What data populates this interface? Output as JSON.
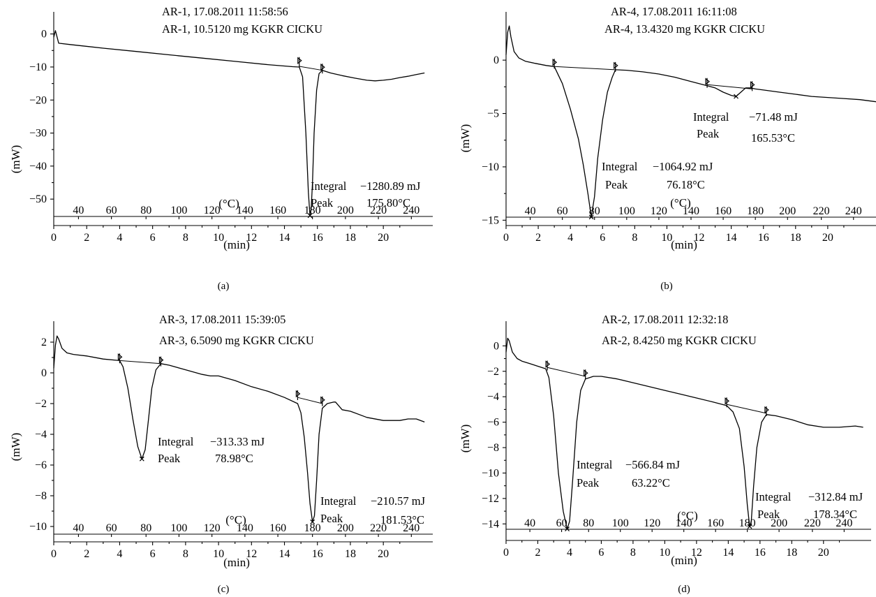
{
  "chart_data": [
    {
      "panel": "(a)",
      "type": "line",
      "header": [
        "AR-1, 17.08.2011 11:58:56",
        "AR-1, 10.5120 mg KGKR CICKU"
      ],
      "xlabel": "(min)",
      "ylabel": "(mW)",
      "temp_axis_label": "(°C)",
      "xlim": [
        0,
        23
      ],
      "ylim": [
        -58,
        5
      ],
      "xticks": [
        0,
        2,
        4,
        6,
        8,
        10,
        12,
        14,
        16,
        18,
        20
      ],
      "yticks": [
        0,
        -10,
        -20,
        -30,
        -40,
        -50
      ],
      "temp_ticks": [
        {
          "t": 1.5,
          "label": "40"
        },
        {
          "t": 3.5,
          "label": "60"
        },
        {
          "t": 5.6,
          "label": "80"
        },
        {
          "t": 7.6,
          "label": "100"
        },
        {
          "t": 9.6,
          "label": "120"
        },
        {
          "t": 11.6,
          "label": "140"
        },
        {
          "t": 13.6,
          "label": "160"
        },
        {
          "t": 15.7,
          "label": "180"
        },
        {
          "t": 17.7,
          "label": "200"
        },
        {
          "t": 19.7,
          "label": "220"
        },
        {
          "t": 21.7,
          "label": "240"
        }
      ],
      "series": [
        {
          "x": [
            0,
            0.1,
            0.3,
            1,
            3,
            5,
            7,
            9,
            11,
            13,
            14.5,
            14.9,
            15.1,
            15.3,
            15.45,
            15.55,
            15.62,
            15.7,
            15.8,
            15.95,
            16.1,
            16.3,
            16.8,
            17.5,
            18.3,
            19,
            19.5,
            20,
            20.5,
            21,
            21.5,
            22,
            22.5
          ],
          "y": [
            -1,
            1,
            -2.8,
            -3.2,
            -4.3,
            -5.3,
            -6.3,
            -7.3,
            -8.3,
            -9.3,
            -9.9,
            -10,
            -13,
            -30,
            -48,
            -55,
            -53,
            -45,
            -30,
            -17,
            -12,
            -11,
            -11.8,
            -12.6,
            -13.4,
            -14,
            -14.2,
            -14,
            -13.7,
            -13.2,
            -12.8,
            -12.3,
            -11.8
          ]
        }
      ],
      "baselines": [
        {
          "x": [
            14.9,
            16.3
          ],
          "y": [
            -9.8,
            -11
          ]
        }
      ],
      "markers": [
        {
          "x": 14.9,
          "y": -8.7
        },
        {
          "x": 16.3,
          "y": -10.7
        }
      ],
      "peak_markers": [
        {
          "x": 15.55,
          "y": -55
        }
      ],
      "annotations": [
        {
          "lines": [
            "Integral",
            "Peak"
          ],
          "values": [
            "−1280.89 mJ",
            "175.80°C"
          ]
        }
      ],
      "caption": "(a)"
    },
    {
      "panel": "(b)",
      "type": "line",
      "header": [
        "AR-4, 17.08.2011 16:11:08",
        "AR-4, 13.4320 mg KGKR CICKU"
      ],
      "xlabel": "(min)",
      "ylabel": "(mW)",
      "temp_axis_label": "(°C)",
      "xlim": [
        0,
        23
      ],
      "ylim": [
        -15.5,
        4
      ],
      "xticks": [
        0,
        2,
        4,
        6,
        8,
        10,
        12,
        14,
        16,
        18,
        20
      ],
      "yticks": [
        0,
        -5,
        -10,
        -15
      ],
      "temp_ticks": [
        {
          "t": 1.5,
          "label": "40"
        },
        {
          "t": 3.5,
          "label": "60"
        },
        {
          "t": 5.5,
          "label": "80"
        },
        {
          "t": 7.5,
          "label": "100"
        },
        {
          "t": 9.5,
          "label": "120"
        },
        {
          "t": 11.5,
          "label": "140"
        },
        {
          "t": 13.5,
          "label": "160"
        },
        {
          "t": 15.5,
          "label": "180"
        },
        {
          "t": 17.5,
          "label": "200"
        },
        {
          "t": 19.6,
          "label": "220"
        },
        {
          "t": 21.6,
          "label": "240"
        }
      ],
      "series": [
        {
          "x": [
            0,
            0.1,
            0.2,
            0.3,
            0.5,
            0.8,
            1.2,
            1.8,
            2.5,
            3,
            3.5,
            4,
            4.5,
            4.8,
            5.1,
            5.3,
            5.5,
            5.7,
            6,
            6.3,
            6.6,
            6.8,
            7.5,
            8.5,
            9.5,
            10.5,
            11.5,
            12.5,
            13,
            13.5,
            14,
            14.3,
            14.6,
            14.9,
            15.2,
            15.5,
            16,
            17,
            18,
            19,
            20,
            21,
            22,
            23
          ],
          "y": [
            0.5,
            2.6,
            3.2,
            2.2,
            0.8,
            0.2,
            -0.1,
            -0.3,
            -0.5,
            -0.6,
            -2.2,
            -4.6,
            -7.4,
            -9.8,
            -12.6,
            -14.7,
            -12.8,
            -9.2,
            -5.6,
            -3,
            -1.6,
            -0.9,
            -0.95,
            -1.1,
            -1.3,
            -1.6,
            -2,
            -2.4,
            -2.6,
            -3,
            -3.3,
            -3.4,
            -3,
            -2.6,
            -2.6,
            -2.7,
            -2.8,
            -3,
            -3.2,
            -3.4,
            -3.5,
            -3.6,
            -3.7,
            -3.9
          ]
        }
      ],
      "baselines": [
        {
          "x": [
            3.0,
            6.8
          ],
          "y": [
            -0.6,
            -0.9
          ]
        },
        {
          "x": [
            12.5,
            15.3
          ],
          "y": [
            -2.3,
            -2.7
          ]
        }
      ],
      "markers": [
        {
          "x": 3.0,
          "y": -0.4
        },
        {
          "x": 6.8,
          "y": -0.7
        },
        {
          "x": 12.5,
          "y": -2.2
        },
        {
          "x": 15.3,
          "y": -2.5
        }
      ],
      "peak_markers": [
        {
          "x": 5.3,
          "y": -14.7
        },
        {
          "x": 14.3,
          "y": -3.4
        }
      ],
      "annotations": [
        {
          "lines": [
            "Integral",
            "Peak"
          ],
          "values": [
            "−1064.92 mJ",
            "76.18°C"
          ]
        },
        {
          "lines": [
            "Integral",
            "Peak"
          ],
          "values": [
            "−71.48 mJ",
            "165.53°C"
          ]
        }
      ],
      "caption": "(b)"
    },
    {
      "panel": "(c)",
      "type": "line",
      "header": [
        "AR-3, 17.08.2011 15:39:05",
        "AR-3, 6.5090 mg KGKR CICKU"
      ],
      "xlabel": "(min)",
      "ylabel": "(mW)",
      "temp_axis_label": "(°C)",
      "xlim": [
        0,
        23
      ],
      "ylim": [
        -11,
        3
      ],
      "xticks": [
        0,
        2,
        4,
        6,
        8,
        10,
        12,
        14,
        16,
        18,
        20
      ],
      "yticks": [
        2,
        0,
        -2,
        -4,
        -6,
        -8,
        -10
      ],
      "temp_ticks": [
        {
          "t": 1.5,
          "label": "40"
        },
        {
          "t": 3.5,
          "label": "60"
        },
        {
          "t": 5.6,
          "label": "80"
        },
        {
          "t": 7.6,
          "label": "100"
        },
        {
          "t": 9.6,
          "label": "120"
        },
        {
          "t": 11.6,
          "label": "140"
        },
        {
          "t": 13.6,
          "label": "160"
        },
        {
          "t": 15.7,
          "label": "180"
        },
        {
          "t": 17.7,
          "label": "200"
        },
        {
          "t": 19.7,
          "label": "220"
        },
        {
          "t": 21.7,
          "label": "240"
        }
      ],
      "series": [
        {
          "x": [
            0,
            0.1,
            0.2,
            0.3,
            0.5,
            0.8,
            1.2,
            2,
            3,
            4,
            4.2,
            4.5,
            4.8,
            5.1,
            5.35,
            5.55,
            5.75,
            5.95,
            6.2,
            6.5,
            7,
            8,
            9,
            9.5,
            10,
            11,
            12,
            13,
            14,
            14.8,
            15,
            15.2,
            15.4,
            15.55,
            15.7,
            15.82,
            15.95,
            16.1,
            16.3,
            16.6,
            17,
            17.1,
            17.5,
            18,
            19,
            20,
            21,
            21.5,
            22,
            22.5
          ],
          "y": [
            0.3,
            1.8,
            2.4,
            2.2,
            1.6,
            1.3,
            1.2,
            1.1,
            0.9,
            0.8,
            0.4,
            -1,
            -3,
            -4.8,
            -5.6,
            -5,
            -3,
            -1,
            0.2,
            0.6,
            0.5,
            0.2,
            -0.1,
            -0.2,
            -0.2,
            -0.5,
            -0.9,
            -1.2,
            -1.6,
            -2,
            -2.6,
            -4.2,
            -6.5,
            -8.5,
            -9.7,
            -9.3,
            -7,
            -4,
            -2.3,
            -2,
            -1.9,
            -1.9,
            -2.4,
            -2.5,
            -2.9,
            -3.1,
            -3.1,
            -3,
            -3,
            -3.2
          ]
        }
      ],
      "baselines": [
        {
          "x": [
            4.0,
            6.5
          ],
          "y": [
            0.8,
            0.6
          ]
        },
        {
          "x": [
            14.8,
            16.3
          ],
          "y": [
            -1.6,
            -2.0
          ]
        }
      ],
      "markers": [
        {
          "x": 4.0,
          "y": 0.9
        },
        {
          "x": 6.5,
          "y": 0.7
        },
        {
          "x": 14.8,
          "y": -1.5
        },
        {
          "x": 16.3,
          "y": -1.9
        }
      ],
      "peak_markers": [
        {
          "x": 5.35,
          "y": -5.6
        },
        {
          "x": 15.7,
          "y": -9.7
        }
      ],
      "annotations": [
        {
          "lines": [
            "Integral",
            "Peak"
          ],
          "values": [
            "−313.33 mJ",
            "78.98°C"
          ]
        },
        {
          "lines": [
            "Integral",
            "Peak"
          ],
          "values": [
            "−210.57 mJ",
            "181.53°C"
          ]
        }
      ],
      "caption": "(c)"
    },
    {
      "panel": "(d)",
      "type": "line",
      "header": [
        "AR-2, 17.08.2011 12:32:18",
        "AR-2, 8.4250 mg KGKR CICKU"
      ],
      "xlabel": "(min)",
      "ylabel": "(mW)",
      "temp_axis_label": "(°C)",
      "xlim": [
        0,
        23
      ],
      "ylim": [
        -15.3,
        1.5
      ],
      "xticks": [
        0,
        2,
        4,
        6,
        8,
        10,
        12,
        14,
        16,
        18,
        20
      ],
      "yticks": [
        0,
        -2,
        -4,
        -6,
        -8,
        -10,
        -12,
        -14
      ],
      "temp_ticks": [
        {
          "t": 1.5,
          "label": "40"
        },
        {
          "t": 3.5,
          "label": "60"
        },
        {
          "t": 5.2,
          "label": "80"
        },
        {
          "t": 7.2,
          "label": "100"
        },
        {
          "t": 9.2,
          "label": "120"
        },
        {
          "t": 11.2,
          "label": "140"
        },
        {
          "t": 13.2,
          "label": "160"
        },
        {
          "t": 15.2,
          "label": "180"
        },
        {
          "t": 17.2,
          "label": "200"
        },
        {
          "t": 19.3,
          "label": "220"
        },
        {
          "t": 21.3,
          "label": "240"
        }
      ],
      "series": [
        {
          "x": [
            0,
            0.1,
            0.2,
            0.4,
            0.7,
            1,
            1.5,
            2,
            2.5,
            2.7,
            3,
            3.3,
            3.6,
            3.85,
            4,
            4.2,
            4.45,
            4.7,
            5,
            5.5,
            6,
            7,
            8,
            9,
            10,
            11,
            12,
            13,
            13.9,
            14.3,
            14.7,
            15,
            15.2,
            15.35,
            15.45,
            15.6,
            15.8,
            16.1,
            16.4,
            17,
            18,
            19,
            20,
            21,
            22,
            22.5
          ],
          "y": [
            -0.5,
            0.6,
            0.4,
            -0.5,
            -1,
            -1.2,
            -1.4,
            -1.6,
            -1.8,
            -2.5,
            -5.5,
            -10,
            -13,
            -14.4,
            -13.8,
            -10.5,
            -6,
            -3.5,
            -2.6,
            -2.4,
            -2.4,
            -2.6,
            -2.9,
            -3.2,
            -3.5,
            -3.8,
            -4.1,
            -4.4,
            -4.7,
            -5.2,
            -6.5,
            -9.5,
            -12.5,
            -14.2,
            -13.8,
            -11,
            -8,
            -6,
            -5.4,
            -5.5,
            -5.8,
            -6.2,
            -6.4,
            -6.4,
            -6.3,
            -6.4
          ]
        }
      ],
      "baselines": [
        {
          "x": [
            2.6,
            5.0
          ],
          "y": [
            -1.7,
            -2.4
          ]
        },
        {
          "x": [
            13.9,
            16.4
          ],
          "y": [
            -4.6,
            -5.3
          ]
        }
      ],
      "markers": [
        {
          "x": 2.6,
          "y": -1.6
        },
        {
          "x": 5.0,
          "y": -2.3
        },
        {
          "x": 13.9,
          "y": -4.5
        },
        {
          "x": 16.4,
          "y": -5.2
        }
      ],
      "peak_markers": [
        {
          "x": 3.85,
          "y": -14.4
        },
        {
          "x": 15.35,
          "y": -14.2
        }
      ],
      "annotations": [
        {
          "lines": [
            "Integral",
            "Peak"
          ],
          "values": [
            "−566.84 mJ",
            "63.22°C"
          ]
        },
        {
          "lines": [
            "Integral",
            "Peak"
          ],
          "values": [
            "−312.84 mJ",
            "178.34°C"
          ]
        }
      ],
      "caption": "(d)"
    }
  ]
}
